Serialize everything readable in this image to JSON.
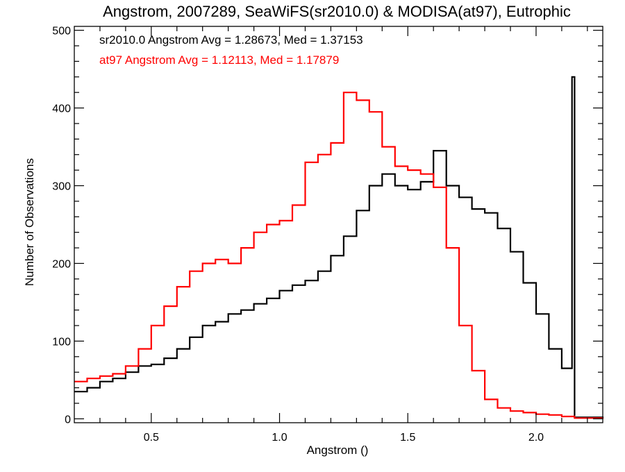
{
  "chart_data": {
    "type": "histogram",
    "title": "Angstrom, 2007289, SeaWiFS(sr2010.0) & MODISA(at97), Eutrophic",
    "xlabel": "Angstrom ()",
    "ylabel": "Number of Observations",
    "xlim": [
      0.2,
      2.26
    ],
    "ylim": [
      -5,
      505
    ],
    "x_ticks": [
      0.5,
      1.0,
      1.5,
      2.0
    ],
    "x_tick_labels": [
      "0.5",
      "1.0",
      "1.5",
      "2.0"
    ],
    "y_ticks": [
      0,
      100,
      200,
      300,
      400,
      500
    ],
    "y_tick_labels": [
      "0",
      "100",
      "200",
      "300",
      "400",
      "500"
    ],
    "grid": false,
    "annotations": [
      {
        "text": "sr2010.0 Angstrom Avg = 1.28673, Med = 1.37153",
        "color": "#000000"
      },
      {
        "text": "at97 Angstrom Avg = 1.12113, Med = 1.17879",
        "color": "#ff0000"
      }
    ],
    "series": [
      {
        "color": "#000000",
        "style": "step",
        "points": [
          [
            0.2,
            35
          ],
          [
            0.25,
            40
          ],
          [
            0.3,
            48
          ],
          [
            0.35,
            52
          ],
          [
            0.4,
            60
          ],
          [
            0.45,
            68
          ],
          [
            0.5,
            70
          ],
          [
            0.55,
            78
          ],
          [
            0.6,
            90
          ],
          [
            0.65,
            105
          ],
          [
            0.7,
            120
          ],
          [
            0.75,
            125
          ],
          [
            0.8,
            135
          ],
          [
            0.85,
            140
          ],
          [
            0.9,
            148
          ],
          [
            0.95,
            155
          ],
          [
            1.0,
            165
          ],
          [
            1.05,
            172
          ],
          [
            1.1,
            178
          ],
          [
            1.15,
            190
          ],
          [
            1.2,
            210
          ],
          [
            1.25,
            235
          ],
          [
            1.3,
            268
          ],
          [
            1.35,
            300
          ],
          [
            1.4,
            315
          ],
          [
            1.45,
            300
          ],
          [
            1.5,
            295
          ],
          [
            1.55,
            305
          ],
          [
            1.6,
            345
          ],
          [
            1.65,
            300
          ],
          [
            1.7,
            285
          ],
          [
            1.75,
            270
          ],
          [
            1.8,
            265
          ],
          [
            1.85,
            245
          ],
          [
            1.9,
            215
          ],
          [
            1.95,
            175
          ],
          [
            2.0,
            135
          ],
          [
            2.05,
            90
          ],
          [
            2.1,
            65
          ],
          [
            2.14,
            440
          ],
          [
            2.15,
            2
          ],
          [
            2.26,
            0
          ]
        ]
      },
      {
        "color": "#ff0000",
        "style": "step",
        "points": [
          [
            0.2,
            48
          ],
          [
            0.25,
            52
          ],
          [
            0.3,
            55
          ],
          [
            0.35,
            58
          ],
          [
            0.4,
            68
          ],
          [
            0.45,
            90
          ],
          [
            0.5,
            120
          ],
          [
            0.55,
            145
          ],
          [
            0.6,
            170
          ],
          [
            0.65,
            190
          ],
          [
            0.7,
            200
          ],
          [
            0.75,
            205
          ],
          [
            0.8,
            200
          ],
          [
            0.85,
            220
          ],
          [
            0.9,
            240
          ],
          [
            0.95,
            250
          ],
          [
            1.0,
            255
          ],
          [
            1.05,
            275
          ],
          [
            1.1,
            330
          ],
          [
            1.15,
            340
          ],
          [
            1.2,
            355
          ],
          [
            1.25,
            420
          ],
          [
            1.3,
            410
          ],
          [
            1.35,
            395
          ],
          [
            1.4,
            350
          ],
          [
            1.45,
            325
          ],
          [
            1.5,
            320
          ],
          [
            1.55,
            315
          ],
          [
            1.6,
            298
          ],
          [
            1.65,
            220
          ],
          [
            1.7,
            120
          ],
          [
            1.75,
            62
          ],
          [
            1.8,
            25
          ],
          [
            1.85,
            14
          ],
          [
            1.9,
            10
          ],
          [
            1.95,
            8
          ],
          [
            2.0,
            6
          ],
          [
            2.05,
            5
          ],
          [
            2.1,
            3
          ],
          [
            2.15,
            1
          ],
          [
            2.26,
            0
          ]
        ]
      }
    ]
  }
}
